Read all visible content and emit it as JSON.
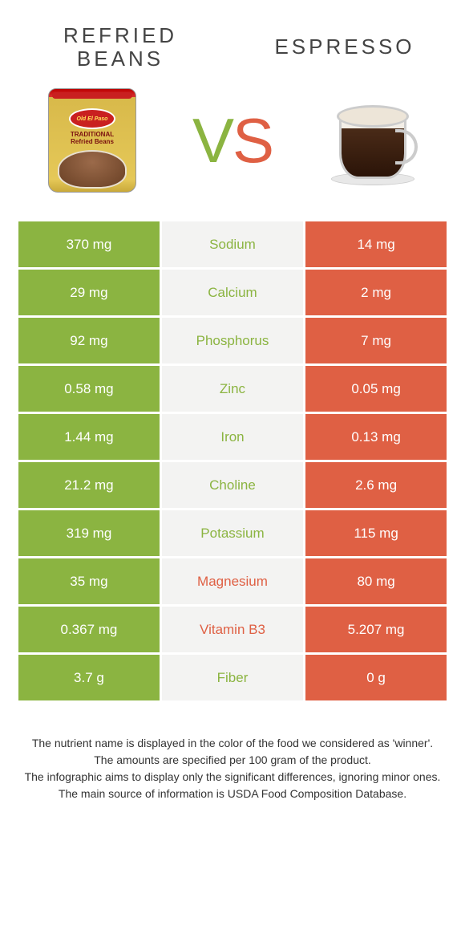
{
  "colors": {
    "green": "#8bb441",
    "orange": "#df6044",
    "mid_bg": "#f3f3f2",
    "text": "#333333"
  },
  "header": {
    "left_title_line1": "REFRIED",
    "left_title_line2": "BEANS",
    "right_title": "ESPRESSO",
    "vs_v": "V",
    "vs_s": "S",
    "can_brand": "Old El Paso",
    "can_text1": "TRADITIONAL",
    "can_text2": "Refried Beans"
  },
  "rows": [
    {
      "left": "370 mg",
      "name": "Sodium",
      "right": "14 mg",
      "winner": "green"
    },
    {
      "left": "29 mg",
      "name": "Calcium",
      "right": "2 mg",
      "winner": "green"
    },
    {
      "left": "92 mg",
      "name": "Phosphorus",
      "right": "7 mg",
      "winner": "green"
    },
    {
      "left": "0.58 mg",
      "name": "Zinc",
      "right": "0.05 mg",
      "winner": "green"
    },
    {
      "left": "1.44 mg",
      "name": "Iron",
      "right": "0.13 mg",
      "winner": "green"
    },
    {
      "left": "21.2 mg",
      "name": "Choline",
      "right": "2.6 mg",
      "winner": "green"
    },
    {
      "left": "319 mg",
      "name": "Potassium",
      "right": "115 mg",
      "winner": "green"
    },
    {
      "left": "35 mg",
      "name": "Magnesium",
      "right": "80 mg",
      "winner": "orange"
    },
    {
      "left": "0.367 mg",
      "name": "Vitamin B3",
      "right": "5.207 mg",
      "winner": "orange"
    },
    {
      "left": "3.7 g",
      "name": "Fiber",
      "right": "0 g",
      "winner": "green"
    }
  ],
  "footnotes": [
    "The nutrient name is displayed in the color of the food we considered as 'winner'.",
    "The amounts are specified per 100 gram of the product.",
    "The infographic aims to display only the significant differences, ignoring minor ones.",
    "The main source of information is USDA Food Composition Database."
  ]
}
